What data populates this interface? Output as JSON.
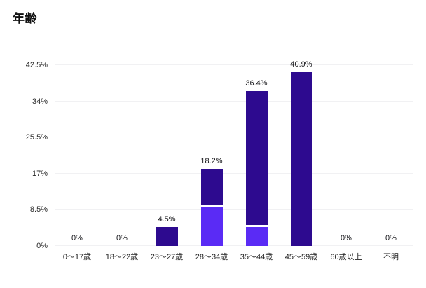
{
  "chart_data": {
    "type": "bar",
    "stacked": true,
    "title": "年齢",
    "categories": [
      "0〜17歳",
      "18〜22歳",
      "23〜27歳",
      "28〜34歳",
      "35〜44歳",
      "45〜59歳",
      "60歳以上",
      "不明"
    ],
    "series": [
      {
        "name": "lower-segment",
        "color": "#5a2bf5",
        "values": [
          0,
          0,
          0,
          9.1,
          4.5,
          0,
          0,
          0
        ]
      },
      {
        "name": "upper-segment",
        "color": "#2d0a8f",
        "values": [
          0,
          0,
          4.5,
          9.1,
          31.9,
          40.9,
          0,
          0
        ]
      }
    ],
    "bar_total_labels": [
      "0%",
      "0%",
      "4.5%",
      "18.2%",
      "36.4%",
      "40.9%",
      "0%",
      "0%"
    ],
    "y_ticks": [
      {
        "label": "0%",
        "value": 0
      },
      {
        "label": "8.5%",
        "value": 8.5
      },
      {
        "label": "17%",
        "value": 17
      },
      {
        "label": "25.5%",
        "value": 25.5
      },
      {
        "label": "34%",
        "value": 34
      },
      {
        "label": "42.5%",
        "value": 42.5
      }
    ],
    "ylim": [
      0,
      42.5
    ],
    "xlabel": "",
    "ylabel": "",
    "grid": true,
    "legend": "none",
    "colors": {
      "grid": "#f1f1f3",
      "background": "#ffffff",
      "label_text": "#16161a"
    }
  }
}
